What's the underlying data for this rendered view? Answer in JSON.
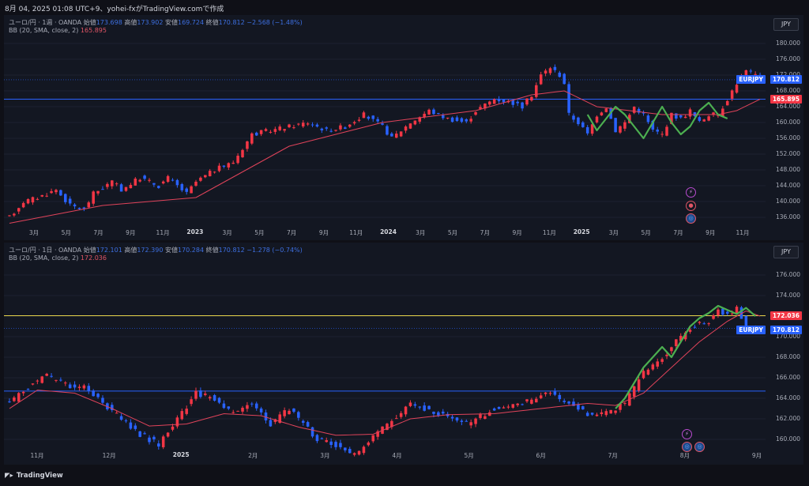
{
  "caption": "8月 04, 2025 01:08 UTC+9、yohei-fxがTradingView.comで作成",
  "footer": {
    "brand": "TradingView",
    "logo": "tradingview-logo-icon"
  },
  "colors": {
    "up": "#f23645",
    "down": "#2962ff",
    "bb": "#e0435a",
    "wave": "#4caf50",
    "hline1": "#2962ff",
    "hline2": "#e6d44a"
  },
  "panes": [
    {
      "title": "ユーロ/円 · 1週 · OANDA",
      "open_label": "始値",
      "open": "173.698",
      "high_label": "高値",
      "high": "173.902",
      "low_label": "安値",
      "low": "169.724",
      "close_label": "終値",
      "close": "170.812",
      "change": "−2.568 (−1.48%)",
      "bb_label": "BB (20, SMA, close, 2)",
      "bb_value": "165.895",
      "currency": "JPY",
      "symbol_tag": "EURJPY",
      "symbol_price": "170.812",
      "line_price": "165.895",
      "y_ticks": [
        "180.000",
        "176.000",
        "172.000",
        "168.000",
        "164.000",
        "160.000",
        "156.000",
        "152.000",
        "148.000",
        "144.000",
        "140.000",
        "136.000"
      ],
      "x_ticks": [
        "3月",
        "5月",
        "7月",
        "9月",
        "11月",
        "2023",
        "3月",
        "5月",
        "7月",
        "9月",
        "11月",
        "2024",
        "3月",
        "5月",
        "7月",
        "9月",
        "11月",
        "2025",
        "3月",
        "5月",
        "7月",
        "9月",
        "11月"
      ],
      "x_bold": [
        "2023",
        "2024",
        "2025"
      ],
      "icons": [
        "lightning-icon",
        "flag-icon",
        "globe-icon"
      ]
    },
    {
      "title": "ユーロ/円 · 1日 · OANDA",
      "open_label": "始値",
      "open": "172.101",
      "high_label": "高値",
      "high": "172.390",
      "low_label": "安値",
      "low": "170.284",
      "close_label": "終値",
      "close": "170.812",
      "change": "−1.278 (−0.74%)",
      "bb_label": "BB (20, SMA, close, 2)",
      "bb_value": "172.036",
      "currency": "JPY",
      "symbol_tag": "EURJPY",
      "symbol_price": "170.812",
      "line_price": "172.036",
      "y_ticks": [
        "176.000",
        "174.000",
        "172.000",
        "170.000",
        "168.000",
        "166.000",
        "164.000",
        "162.000",
        "160.000"
      ],
      "x_ticks": [
        "11月",
        "12月",
        "2025",
        "2月",
        "3月",
        "4月",
        "5月",
        "6月",
        "7月",
        "8月",
        "9月"
      ],
      "x_bold": [
        "2025"
      ],
      "icons": [
        "lightning-icon",
        "globe-icon",
        "globe-icon"
      ]
    }
  ],
  "chart_data": [
    {
      "type": "candlestick",
      "title": "ユーロ/円 · 1週 · OANDA",
      "ylim": [
        134,
        182
      ],
      "hline": 165.895,
      "path": [
        [
          0,
          136
        ],
        [
          3,
          140
        ],
        [
          6,
          141
        ],
        [
          10,
          143
        ],
        [
          13,
          139
        ],
        [
          16,
          138
        ],
        [
          18,
          142
        ],
        [
          22,
          145
        ],
        [
          24,
          143
        ],
        [
          28,
          146
        ],
        [
          32,
          144
        ],
        [
          34,
          146
        ],
        [
          38,
          142
        ],
        [
          40,
          145
        ],
        [
          44,
          148
        ],
        [
          48,
          150
        ],
        [
          52,
          157
        ],
        [
          56,
          158
        ],
        [
          60,
          159
        ],
        [
          64,
          160
        ],
        [
          68,
          158
        ],
        [
          72,
          159
        ],
        [
          76,
          162
        ],
        [
          80,
          159
        ],
        [
          82,
          156
        ],
        [
          86,
          160
        ],
        [
          90,
          163
        ],
        [
          94,
          161
        ],
        [
          98,
          160
        ],
        [
          100,
          163
        ],
        [
          104,
          166
        ],
        [
          108,
          165
        ],
        [
          110,
          164
        ],
        [
          112,
          167
        ],
        [
          114,
          172
        ],
        [
          116,
          174
        ],
        [
          118,
          172
        ],
        [
          119,
          170
        ],
        [
          120,
          162
        ],
        [
          122,
          160
        ],
        [
          124,
          157
        ],
        [
          126,
          162
        ],
        [
          128,
          164
        ],
        [
          130,
          158
        ],
        [
          132,
          160
        ],
        [
          134,
          164
        ],
        [
          136,
          162
        ],
        [
          138,
          158
        ],
        [
          140,
          157
        ],
        [
          142,
          162
        ],
        [
          144,
          161
        ],
        [
          146,
          163
        ],
        [
          148,
          160
        ],
        [
          150,
          162
        ],
        [
          152,
          162
        ],
        [
          154,
          166
        ],
        [
          156,
          170
        ],
        [
          158,
          173
        ],
        [
          160,
          172
        ],
        [
          161,
          170.8
        ]
      ],
      "bb_path": [
        [
          0,
          134.5
        ],
        [
          20,
          139
        ],
        [
          40,
          141
        ],
        [
          60,
          154
        ],
        [
          80,
          160
        ],
        [
          100,
          163
        ],
        [
          112,
          167
        ],
        [
          119,
          168
        ],
        [
          126,
          164
        ],
        [
          140,
          162
        ],
        [
          152,
          162
        ],
        [
          156,
          163
        ],
        [
          161,
          165.9
        ]
      ],
      "wave": [
        [
          124,
          162
        ],
        [
          126,
          158
        ],
        [
          128,
          161
        ],
        [
          130,
          164
        ],
        [
          132,
          162
        ],
        [
          134,
          159
        ],
        [
          136,
          156
        ],
        [
          138,
          160
        ],
        [
          140,
          164
        ],
        [
          142,
          160
        ],
        [
          144,
          157
        ],
        [
          146,
          159
        ],
        [
          148,
          163
        ],
        [
          150,
          165
        ],
        [
          152,
          162
        ],
        [
          154,
          161
        ]
      ]
    },
    {
      "type": "candlestick",
      "title": "ユーロ/円 · 1日 · OANDA",
      "ylim": [
        159,
        177
      ],
      "hline_blue": 164.7,
      "hline_yellow": 172.036,
      "path": [
        [
          0,
          163.5
        ],
        [
          5,
          165.5
        ],
        [
          8,
          166.2
        ],
        [
          12,
          165.3
        ],
        [
          16,
          165
        ],
        [
          20,
          163.5
        ],
        [
          24,
          162
        ],
        [
          28,
          160.5
        ],
        [
          32,
          159.5
        ],
        [
          36,
          162
        ],
        [
          40,
          164.5
        ],
        [
          44,
          164
        ],
        [
          48,
          162.5
        ],
        [
          52,
          163.5
        ],
        [
          56,
          161.5
        ],
        [
          60,
          163
        ],
        [
          66,
          160
        ],
        [
          70,
          159.5
        ],
        [
          74,
          158.5
        ],
        [
          80,
          161
        ],
        [
          86,
          163.5
        ],
        [
          92,
          162.5
        ],
        [
          98,
          161.5
        ],
        [
          104,
          163
        ],
        [
          110,
          163.5
        ],
        [
          116,
          164.5
        ],
        [
          120,
          163.5
        ],
        [
          124,
          162.5
        ],
        [
          128,
          162.5
        ],
        [
          132,
          163.5
        ],
        [
          136,
          166.5
        ],
        [
          140,
          168
        ],
        [
          144,
          170
        ],
        [
          148,
          171.5
        ],
        [
          150,
          171.5
        ],
        [
          152,
          172.5
        ],
        [
          154,
          172
        ],
        [
          156,
          173
        ],
        [
          158,
          171
        ],
        [
          160,
          170.5
        ],
        [
          161,
          170.8
        ]
      ],
      "bb_path": [
        [
          0,
          163
        ],
        [
          6,
          164.8
        ],
        [
          14,
          164.5
        ],
        [
          22,
          163
        ],
        [
          30,
          161.3
        ],
        [
          38,
          161.5
        ],
        [
          46,
          162.5
        ],
        [
          54,
          162.3
        ],
        [
          62,
          161.2
        ],
        [
          70,
          160.4
        ],
        [
          78,
          160.5
        ],
        [
          86,
          162
        ],
        [
          94,
          162.4
        ],
        [
          104,
          162.5
        ],
        [
          114,
          163
        ],
        [
          124,
          163.5
        ],
        [
          130,
          163.3
        ],
        [
          136,
          164.5
        ],
        [
          142,
          167
        ],
        [
          148,
          169.5
        ],
        [
          154,
          171.5
        ],
        [
          158,
          172.5
        ],
        [
          161,
          172
        ]
      ],
      "wave": [
        [
          130,
          163
        ],
        [
          132,
          164
        ],
        [
          134,
          165.5
        ],
        [
          136,
          167
        ],
        [
          138,
          168
        ],
        [
          140,
          169
        ],
        [
          142,
          168
        ],
        [
          144,
          169.5
        ],
        [
          146,
          171
        ],
        [
          148,
          171.8
        ],
        [
          150,
          172.3
        ],
        [
          152,
          173
        ],
        [
          154,
          172.6
        ],
        [
          156,
          172.2
        ],
        [
          158,
          172.8
        ],
        [
          160,
          172
        ]
      ]
    }
  ]
}
